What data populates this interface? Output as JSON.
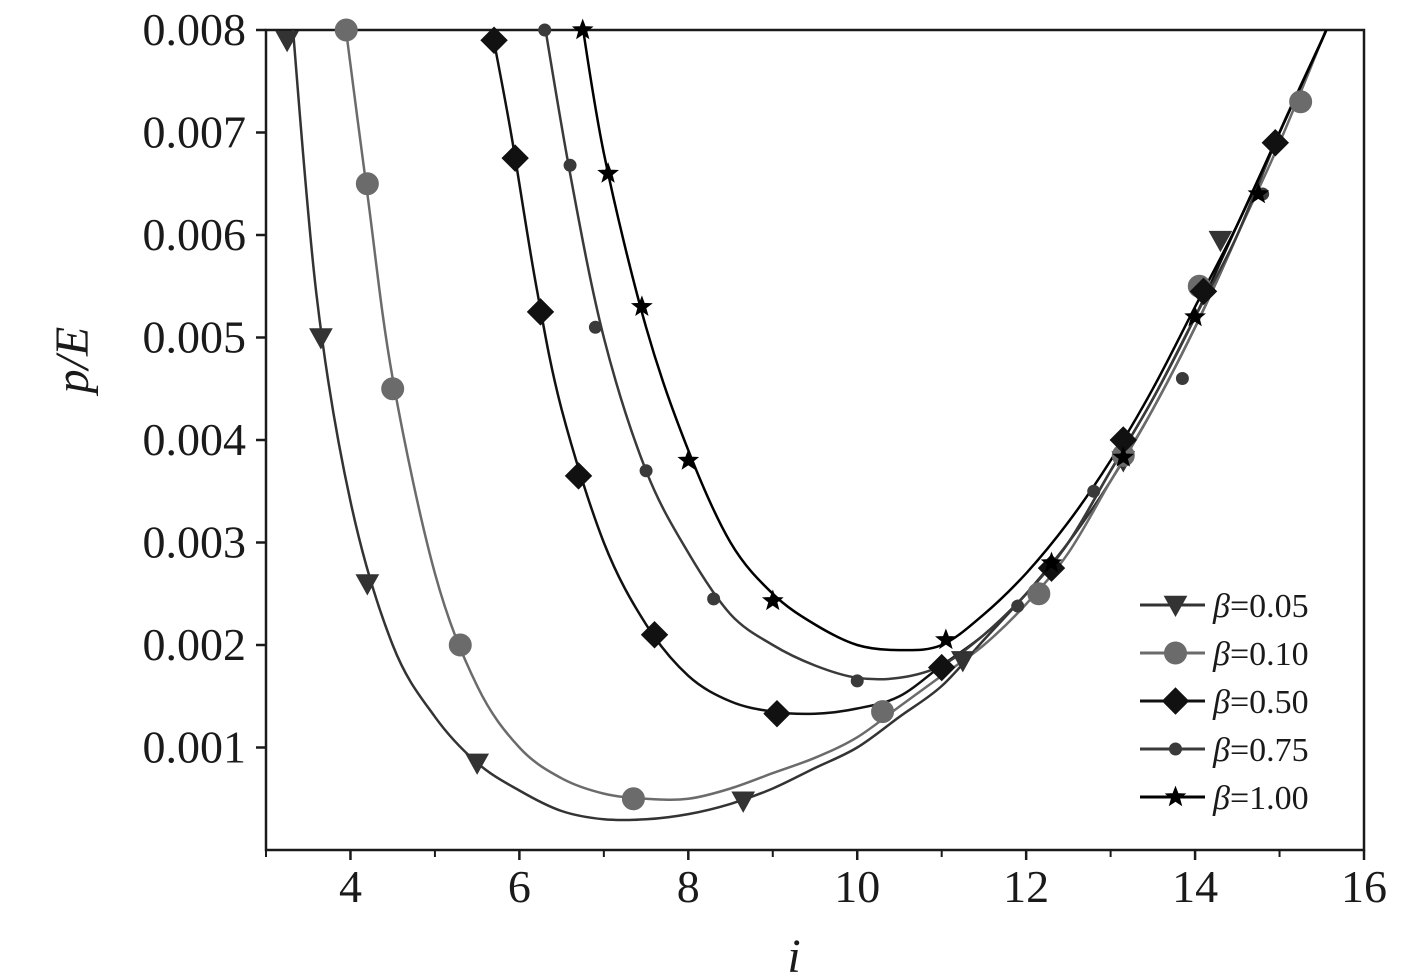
{
  "chart_data": {
    "type": "line",
    "xlabel": "i",
    "ylabel": "p/E",
    "xlim": [
      3,
      16
    ],
    "ylim": [
      0,
      0.008
    ],
    "x_ticks": [
      {
        "value": 4,
        "label": "4"
      },
      {
        "value": 6,
        "label": "6"
      },
      {
        "value": 8,
        "label": "8"
      },
      {
        "value": 10,
        "label": "10"
      },
      {
        "value": 12,
        "label": "12"
      },
      {
        "value": 14,
        "label": "14"
      },
      {
        "value": 16,
        "label": "16"
      }
    ],
    "x_minor_ticks": [
      3,
      5,
      7,
      9,
      11,
      13,
      15
    ],
    "y_ticks": [
      {
        "value": 0.001,
        "label": "0.001"
      },
      {
        "value": 0.002,
        "label": "0.002"
      },
      {
        "value": 0.003,
        "label": "0.003"
      },
      {
        "value": 0.004,
        "label": "0.004"
      },
      {
        "value": 0.005,
        "label": "0.005"
      },
      {
        "value": 0.006,
        "label": "0.006"
      },
      {
        "value": 0.007,
        "label": "0.007"
      },
      {
        "value": 0.008,
        "label": "0.008"
      }
    ],
    "grid": false,
    "legend": {
      "position": "bottom-right"
    },
    "series": [
      {
        "name": "β=0.05",
        "symbol": "β",
        "value_label": "=0.05",
        "marker": "triangle-down",
        "color": "#333333",
        "markers": [
          [
            3.25,
            0.0079
          ],
          [
            3.65,
            0.005
          ],
          [
            4.2,
            0.0026
          ],
          [
            5.5,
            0.00085
          ],
          [
            8.65,
            0.00048
          ],
          [
            11.25,
            0.00185
          ],
          [
            13.15,
            0.0038
          ],
          [
            14.3,
            0.00595
          ]
        ],
        "curve": [
          [
            3.3,
            0.0082
          ],
          [
            3.6,
            0.0054
          ],
          [
            4.0,
            0.0034
          ],
          [
            4.5,
            0.002
          ],
          [
            5.0,
            0.0013
          ],
          [
            5.5,
            0.00085
          ],
          [
            6.0,
            0.00058
          ],
          [
            6.5,
            0.00038
          ],
          [
            7.0,
            0.0003
          ],
          [
            7.5,
            0.0003
          ],
          [
            8.0,
            0.00035
          ],
          [
            8.5,
            0.00045
          ],
          [
            9.0,
            0.0006
          ],
          [
            9.5,
            0.0008
          ],
          [
            10.0,
            0.001
          ],
          [
            10.5,
            0.0013
          ],
          [
            11.0,
            0.0016
          ],
          [
            11.5,
            0.00205
          ],
          [
            12.0,
            0.0025
          ],
          [
            12.5,
            0.003
          ],
          [
            13.0,
            0.0036
          ],
          [
            13.5,
            0.0043
          ],
          [
            14.0,
            0.0051
          ],
          [
            14.5,
            0.006
          ],
          [
            15.0,
            0.007
          ],
          [
            15.5,
            0.0079
          ],
          [
            15.6,
            0.0081
          ]
        ]
      },
      {
        "name": "β=0.10",
        "symbol": "β",
        "value_label": "=0.10",
        "marker": "circle",
        "color": "#6b6b6b",
        "markers": [
          [
            3.95,
            0.008
          ],
          [
            4.2,
            0.0065
          ],
          [
            4.5,
            0.0045
          ],
          [
            5.3,
            0.002
          ],
          [
            7.35,
            0.0005
          ],
          [
            10.3,
            0.00135
          ],
          [
            12.15,
            0.0025
          ],
          [
            13.15,
            0.00385
          ],
          [
            14.05,
            0.0055
          ],
          [
            15.25,
            0.0073
          ]
        ],
        "curve": [
          [
            3.9,
            0.0083
          ],
          [
            4.2,
            0.0064
          ],
          [
            4.5,
            0.0046
          ],
          [
            5.0,
            0.0027
          ],
          [
            5.5,
            0.0016
          ],
          [
            6.0,
            0.001
          ],
          [
            6.5,
            0.0007
          ],
          [
            7.0,
            0.00055
          ],
          [
            7.5,
            0.0005
          ],
          [
            8.0,
            0.0005
          ],
          [
            8.5,
            0.0006
          ],
          [
            9.0,
            0.00075
          ],
          [
            9.5,
            0.0009
          ],
          [
            10.0,
            0.0011
          ],
          [
            10.5,
            0.0014
          ],
          [
            11.0,
            0.0017
          ],
          [
            11.5,
            0.002
          ],
          [
            12.0,
            0.0024
          ],
          [
            12.5,
            0.0029
          ],
          [
            13.0,
            0.0036
          ],
          [
            13.5,
            0.0043
          ],
          [
            14.0,
            0.0051
          ],
          [
            14.5,
            0.006
          ],
          [
            15.0,
            0.0069
          ],
          [
            15.5,
            0.0079
          ],
          [
            15.6,
            0.0081
          ]
        ]
      },
      {
        "name": "β=0.50",
        "symbol": "β",
        "value_label": "=0.50",
        "marker": "diamond",
        "color": "#111111",
        "markers": [
          [
            5.7,
            0.0079
          ],
          [
            5.95,
            0.00675
          ],
          [
            6.25,
            0.00525
          ],
          [
            6.7,
            0.00365
          ],
          [
            7.6,
            0.0021
          ],
          [
            9.05,
            0.00133
          ],
          [
            11.0,
            0.00178
          ],
          [
            12.3,
            0.00275
          ],
          [
            13.15,
            0.004
          ],
          [
            14.1,
            0.00545
          ],
          [
            14.95,
            0.0069
          ]
        ],
        "curve": [
          [
            5.65,
            0.0081
          ],
          [
            5.9,
            0.007
          ],
          [
            6.2,
            0.0055
          ],
          [
            6.5,
            0.0043
          ],
          [
            7.0,
            0.003
          ],
          [
            7.5,
            0.0022
          ],
          [
            8.0,
            0.0017
          ],
          [
            8.5,
            0.00145
          ],
          [
            9.0,
            0.00135
          ],
          [
            9.5,
            0.00133
          ],
          [
            10.0,
            0.00138
          ],
          [
            10.5,
            0.0015
          ],
          [
            11.0,
            0.0018
          ],
          [
            11.5,
            0.0021
          ],
          [
            12.0,
            0.0025
          ],
          [
            12.5,
            0.003
          ],
          [
            13.0,
            0.0037
          ],
          [
            13.5,
            0.0044
          ],
          [
            14.0,
            0.0052
          ],
          [
            14.5,
            0.0061
          ],
          [
            15.0,
            0.007
          ],
          [
            15.5,
            0.0079
          ],
          [
            15.6,
            0.0081
          ]
        ]
      },
      {
        "name": "β=0.75",
        "symbol": "β",
        "value_label": "=0.75",
        "marker": "small-circle",
        "color": "#3a3a3a",
        "markers": [
          [
            6.3,
            0.008
          ],
          [
            6.6,
            0.00668
          ],
          [
            6.9,
            0.0051
          ],
          [
            7.5,
            0.0037
          ],
          [
            8.3,
            0.00245
          ],
          [
            10.0,
            0.00165
          ],
          [
            11.9,
            0.00238
          ],
          [
            12.8,
            0.0035
          ],
          [
            13.85,
            0.0046
          ],
          [
            14.8,
            0.0064
          ]
        ],
        "curve": [
          [
            6.25,
            0.0083
          ],
          [
            6.6,
            0.0066
          ],
          [
            7.0,
            0.005
          ],
          [
            7.5,
            0.0037
          ],
          [
            8.0,
            0.0029
          ],
          [
            8.5,
            0.0023
          ],
          [
            9.0,
            0.002
          ],
          [
            9.5,
            0.0018
          ],
          [
            10.0,
            0.00168
          ],
          [
            10.5,
            0.00168
          ],
          [
            11.0,
            0.0018
          ],
          [
            11.5,
            0.0021
          ],
          [
            12.0,
            0.0025
          ],
          [
            12.5,
            0.003
          ],
          [
            13.0,
            0.0037
          ],
          [
            13.5,
            0.0044
          ],
          [
            14.0,
            0.0052
          ],
          [
            14.5,
            0.006
          ],
          [
            15.0,
            0.007
          ],
          [
            15.5,
            0.0079
          ],
          [
            15.6,
            0.0081
          ]
        ]
      },
      {
        "name": "β=1.00",
        "symbol": "β",
        "value_label": "=1.00",
        "marker": "star",
        "color": "#000000",
        "markers": [
          [
            6.75,
            0.008
          ],
          [
            7.05,
            0.0066
          ],
          [
            7.45,
            0.0053
          ],
          [
            8.0,
            0.0038
          ],
          [
            9.0,
            0.00243
          ],
          [
            11.05,
            0.00205
          ],
          [
            12.3,
            0.0028
          ],
          [
            13.15,
            0.00383
          ],
          [
            14.0,
            0.0052
          ],
          [
            14.75,
            0.0064
          ]
        ],
        "curve": [
          [
            6.7,
            0.0083
          ],
          [
            7.0,
            0.0068
          ],
          [
            7.5,
            0.0051
          ],
          [
            8.0,
            0.0039
          ],
          [
            8.5,
            0.003
          ],
          [
            9.0,
            0.0025
          ],
          [
            9.5,
            0.0022
          ],
          [
            10.0,
            0.002
          ],
          [
            10.5,
            0.00195
          ],
          [
            11.0,
            0.002
          ],
          [
            11.5,
            0.0023
          ],
          [
            12.0,
            0.0027
          ],
          [
            12.5,
            0.0032
          ],
          [
            13.0,
            0.0038
          ],
          [
            13.5,
            0.0045
          ],
          [
            14.0,
            0.0053
          ],
          [
            14.5,
            0.0061
          ],
          [
            15.0,
            0.007
          ],
          [
            15.5,
            0.0079
          ],
          [
            15.6,
            0.0081
          ]
        ]
      }
    ]
  }
}
